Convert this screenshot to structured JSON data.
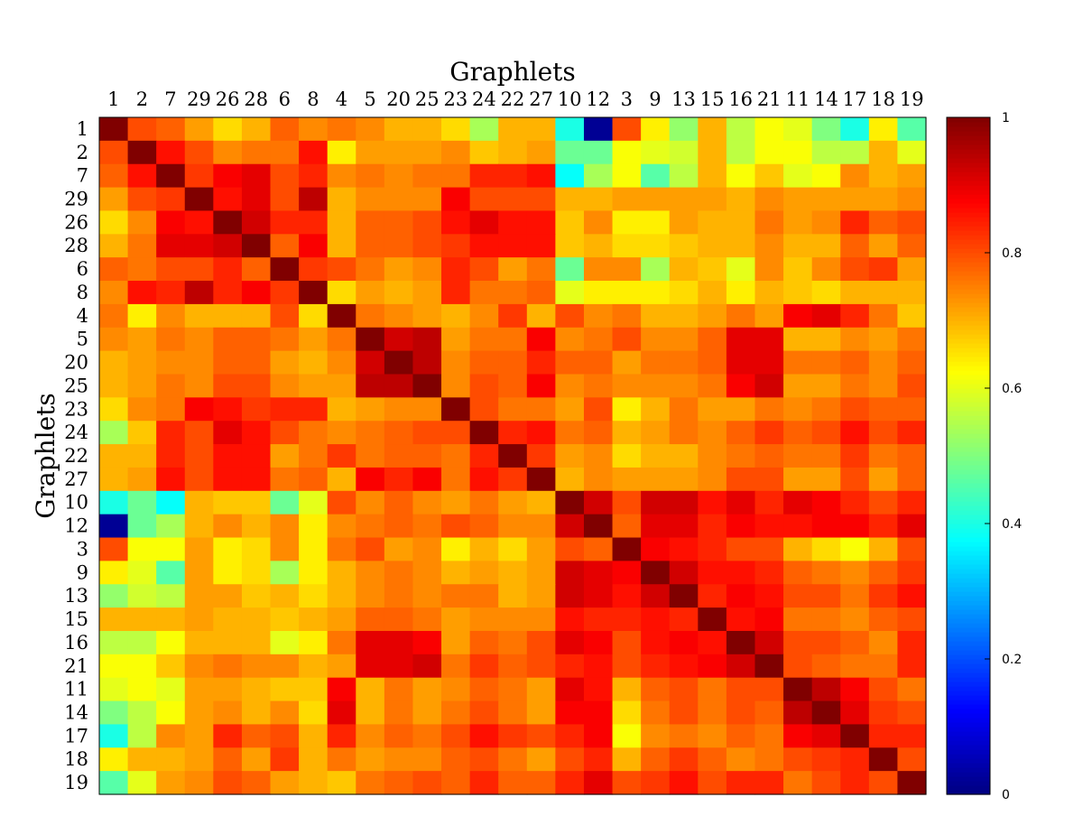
{
  "chart_data": {
    "type": "heatmap",
    "title": "",
    "xlabel": "Graphlets",
    "ylabel": "Graphlets",
    "x_axis_position": "top",
    "categories": [
      "1",
      "2",
      "7",
      "29",
      "26",
      "28",
      "6",
      "8",
      "4",
      "5",
      "20",
      "25",
      "23",
      "24",
      "22",
      "27",
      "10",
      "12",
      "3",
      "9",
      "13",
      "15",
      "16",
      "21",
      "11",
      "14",
      "17",
      "18",
      "19"
    ],
    "colormap": "jet",
    "colorbar": {
      "min": 0,
      "max": 1,
      "tick_labels": [
        "0",
        "0.2",
        "0.4",
        "0.6",
        "0.8",
        "1"
      ],
      "tick_values": [
        0,
        0.2,
        0.4,
        0.6,
        0.8,
        1
      ],
      "position": "right"
    },
    "values": [
      [
        1.0,
        0.8,
        0.78,
        0.72,
        0.66,
        0.7,
        0.78,
        0.74,
        0.76,
        0.74,
        0.7,
        0.7,
        0.66,
        0.54,
        0.7,
        0.7,
        0.4,
        0.02,
        0.8,
        0.64,
        0.52,
        0.7,
        0.56,
        0.62,
        0.6,
        0.5,
        0.4,
        0.64,
        0.46
      ],
      [
        0.8,
        1.0,
        0.86,
        0.8,
        0.74,
        0.76,
        0.76,
        0.86,
        0.64,
        0.72,
        0.72,
        0.72,
        0.74,
        0.68,
        0.7,
        0.72,
        0.48,
        0.48,
        0.62,
        0.6,
        0.58,
        0.7,
        0.56,
        0.62,
        0.62,
        0.56,
        0.56,
        0.7,
        0.6
      ],
      [
        0.78,
        0.86,
        1.0,
        0.82,
        0.88,
        0.9,
        0.8,
        0.84,
        0.74,
        0.76,
        0.74,
        0.76,
        0.76,
        0.84,
        0.84,
        0.86,
        0.38,
        0.54,
        0.62,
        0.46,
        0.56,
        0.7,
        0.62,
        0.68,
        0.6,
        0.62,
        0.74,
        0.7,
        0.72
      ],
      [
        0.72,
        0.8,
        0.82,
        1.0,
        0.86,
        0.9,
        0.8,
        0.94,
        0.7,
        0.74,
        0.74,
        0.74,
        0.88,
        0.8,
        0.8,
        0.8,
        0.7,
        0.7,
        0.72,
        0.72,
        0.72,
        0.72,
        0.7,
        0.74,
        0.72,
        0.72,
        0.72,
        0.72,
        0.74
      ],
      [
        0.66,
        0.74,
        0.88,
        0.86,
        1.0,
        0.92,
        0.84,
        0.84,
        0.7,
        0.78,
        0.78,
        0.8,
        0.86,
        0.9,
        0.86,
        0.86,
        0.68,
        0.74,
        0.64,
        0.64,
        0.72,
        0.7,
        0.7,
        0.76,
        0.72,
        0.74,
        0.84,
        0.78,
        0.8
      ],
      [
        0.7,
        0.76,
        0.9,
        0.9,
        0.92,
        1.0,
        0.78,
        0.88,
        0.7,
        0.78,
        0.78,
        0.8,
        0.82,
        0.86,
        0.86,
        0.86,
        0.68,
        0.7,
        0.66,
        0.66,
        0.68,
        0.7,
        0.7,
        0.74,
        0.7,
        0.7,
        0.78,
        0.72,
        0.78
      ],
      [
        0.78,
        0.76,
        0.8,
        0.8,
        0.84,
        0.78,
        1.0,
        0.82,
        0.8,
        0.76,
        0.72,
        0.74,
        0.84,
        0.8,
        0.72,
        0.76,
        0.48,
        0.74,
        0.74,
        0.54,
        0.7,
        0.68,
        0.6,
        0.74,
        0.68,
        0.74,
        0.8,
        0.82,
        0.72
      ],
      [
        0.74,
        0.86,
        0.84,
        0.94,
        0.84,
        0.88,
        0.82,
        1.0,
        0.66,
        0.72,
        0.7,
        0.72,
        0.84,
        0.76,
        0.76,
        0.78,
        0.6,
        0.64,
        0.64,
        0.64,
        0.66,
        0.7,
        0.64,
        0.7,
        0.68,
        0.66,
        0.7,
        0.7,
        0.7
      ],
      [
        0.76,
        0.64,
        0.74,
        0.7,
        0.7,
        0.7,
        0.8,
        0.66,
        1.0,
        0.76,
        0.74,
        0.72,
        0.7,
        0.74,
        0.82,
        0.7,
        0.8,
        0.74,
        0.76,
        0.7,
        0.7,
        0.72,
        0.76,
        0.72,
        0.88,
        0.9,
        0.84,
        0.76,
        0.68
      ],
      [
        0.74,
        0.72,
        0.76,
        0.74,
        0.78,
        0.78,
        0.76,
        0.72,
        0.76,
        1.0,
        0.92,
        0.94,
        0.72,
        0.76,
        0.76,
        0.88,
        0.74,
        0.76,
        0.8,
        0.74,
        0.74,
        0.78,
        0.9,
        0.9,
        0.7,
        0.7,
        0.74,
        0.72,
        0.76
      ],
      [
        0.7,
        0.72,
        0.74,
        0.74,
        0.78,
        0.78,
        0.72,
        0.7,
        0.74,
        0.92,
        1.0,
        0.94,
        0.74,
        0.78,
        0.78,
        0.84,
        0.78,
        0.78,
        0.72,
        0.76,
        0.76,
        0.78,
        0.9,
        0.9,
        0.76,
        0.76,
        0.78,
        0.74,
        0.78
      ],
      [
        0.7,
        0.72,
        0.76,
        0.74,
        0.8,
        0.8,
        0.74,
        0.72,
        0.72,
        0.94,
        0.94,
        1.0,
        0.74,
        0.8,
        0.78,
        0.88,
        0.74,
        0.76,
        0.74,
        0.74,
        0.74,
        0.76,
        0.88,
        0.92,
        0.72,
        0.72,
        0.76,
        0.74,
        0.8
      ],
      [
        0.66,
        0.74,
        0.76,
        0.88,
        0.86,
        0.82,
        0.84,
        0.84,
        0.7,
        0.72,
        0.74,
        0.74,
        1.0,
        0.8,
        0.76,
        0.76,
        0.72,
        0.8,
        0.64,
        0.7,
        0.76,
        0.72,
        0.72,
        0.76,
        0.74,
        0.76,
        0.8,
        0.78,
        0.78
      ],
      [
        0.54,
        0.68,
        0.84,
        0.8,
        0.9,
        0.86,
        0.8,
        0.76,
        0.74,
        0.76,
        0.78,
        0.8,
        0.8,
        1.0,
        0.84,
        0.86,
        0.76,
        0.78,
        0.7,
        0.72,
        0.76,
        0.74,
        0.78,
        0.82,
        0.78,
        0.8,
        0.86,
        0.8,
        0.84
      ],
      [
        0.7,
        0.7,
        0.84,
        0.8,
        0.86,
        0.86,
        0.72,
        0.76,
        0.82,
        0.76,
        0.78,
        0.78,
        0.76,
        0.84,
        1.0,
        0.82,
        0.72,
        0.74,
        0.66,
        0.7,
        0.7,
        0.74,
        0.76,
        0.78,
        0.76,
        0.76,
        0.82,
        0.76,
        0.78
      ],
      [
        0.7,
        0.72,
        0.86,
        0.8,
        0.86,
        0.86,
        0.76,
        0.78,
        0.7,
        0.88,
        0.84,
        0.88,
        0.76,
        0.86,
        0.82,
        1.0,
        0.7,
        0.74,
        0.72,
        0.72,
        0.72,
        0.74,
        0.8,
        0.8,
        0.72,
        0.72,
        0.8,
        0.72,
        0.78
      ],
      [
        0.4,
        0.48,
        0.38,
        0.7,
        0.68,
        0.68,
        0.48,
        0.6,
        0.8,
        0.74,
        0.78,
        0.74,
        0.72,
        0.76,
        0.72,
        0.7,
        1.0,
        0.92,
        0.8,
        0.92,
        0.92,
        0.86,
        0.9,
        0.84,
        0.9,
        0.88,
        0.84,
        0.8,
        0.84
      ],
      [
        0.02,
        0.48,
        0.54,
        0.7,
        0.74,
        0.7,
        0.74,
        0.64,
        0.74,
        0.76,
        0.78,
        0.76,
        0.8,
        0.78,
        0.74,
        0.74,
        0.92,
        1.0,
        0.78,
        0.9,
        0.9,
        0.84,
        0.88,
        0.86,
        0.86,
        0.88,
        0.88,
        0.84,
        0.9
      ],
      [
        0.8,
        0.62,
        0.62,
        0.72,
        0.64,
        0.66,
        0.74,
        0.64,
        0.76,
        0.8,
        0.72,
        0.74,
        0.64,
        0.7,
        0.66,
        0.72,
        0.8,
        0.78,
        1.0,
        0.88,
        0.86,
        0.84,
        0.8,
        0.8,
        0.7,
        0.66,
        0.62,
        0.7,
        0.8
      ],
      [
        0.64,
        0.6,
        0.46,
        0.72,
        0.64,
        0.66,
        0.54,
        0.64,
        0.7,
        0.74,
        0.76,
        0.74,
        0.7,
        0.72,
        0.7,
        0.72,
        0.92,
        0.9,
        0.88,
        1.0,
        0.92,
        0.86,
        0.86,
        0.84,
        0.78,
        0.76,
        0.74,
        0.78,
        0.82
      ],
      [
        0.52,
        0.58,
        0.56,
        0.72,
        0.72,
        0.68,
        0.7,
        0.66,
        0.7,
        0.74,
        0.76,
        0.74,
        0.76,
        0.76,
        0.7,
        0.72,
        0.92,
        0.9,
        0.86,
        0.92,
        1.0,
        0.84,
        0.88,
        0.86,
        0.8,
        0.8,
        0.76,
        0.82,
        0.86
      ],
      [
        0.7,
        0.7,
        0.7,
        0.72,
        0.7,
        0.7,
        0.68,
        0.7,
        0.72,
        0.78,
        0.78,
        0.76,
        0.72,
        0.74,
        0.74,
        0.74,
        0.86,
        0.84,
        0.84,
        0.86,
        0.84,
        1.0,
        0.86,
        0.88,
        0.76,
        0.76,
        0.74,
        0.78,
        0.8
      ],
      [
        0.56,
        0.56,
        0.62,
        0.7,
        0.7,
        0.7,
        0.6,
        0.64,
        0.76,
        0.9,
        0.9,
        0.88,
        0.72,
        0.78,
        0.76,
        0.8,
        0.9,
        0.88,
        0.8,
        0.86,
        0.88,
        0.86,
        1.0,
        0.92,
        0.8,
        0.8,
        0.78,
        0.74,
        0.84
      ],
      [
        0.62,
        0.62,
        0.68,
        0.74,
        0.76,
        0.74,
        0.74,
        0.7,
        0.72,
        0.9,
        0.9,
        0.92,
        0.76,
        0.82,
        0.78,
        0.8,
        0.84,
        0.86,
        0.8,
        0.84,
        0.86,
        0.88,
        0.92,
        1.0,
        0.8,
        0.78,
        0.76,
        0.76,
        0.84
      ],
      [
        0.6,
        0.62,
        0.6,
        0.72,
        0.72,
        0.7,
        0.68,
        0.68,
        0.88,
        0.7,
        0.76,
        0.72,
        0.74,
        0.78,
        0.76,
        0.72,
        0.9,
        0.86,
        0.7,
        0.78,
        0.8,
        0.76,
        0.8,
        0.8,
        1.0,
        0.94,
        0.88,
        0.8,
        0.76
      ],
      [
        0.5,
        0.56,
        0.62,
        0.72,
        0.74,
        0.7,
        0.74,
        0.66,
        0.9,
        0.7,
        0.76,
        0.72,
        0.76,
        0.8,
        0.76,
        0.72,
        0.88,
        0.88,
        0.66,
        0.76,
        0.8,
        0.76,
        0.8,
        0.78,
        0.94,
        1.0,
        0.9,
        0.82,
        0.8
      ],
      [
        0.4,
        0.56,
        0.74,
        0.72,
        0.84,
        0.78,
        0.8,
        0.7,
        0.84,
        0.74,
        0.78,
        0.76,
        0.8,
        0.86,
        0.82,
        0.8,
        0.84,
        0.88,
        0.62,
        0.74,
        0.76,
        0.74,
        0.78,
        0.76,
        0.88,
        0.9,
        1.0,
        0.84,
        0.84
      ],
      [
        0.64,
        0.7,
        0.7,
        0.72,
        0.78,
        0.72,
        0.82,
        0.7,
        0.76,
        0.72,
        0.74,
        0.74,
        0.78,
        0.8,
        0.76,
        0.72,
        0.8,
        0.84,
        0.7,
        0.78,
        0.82,
        0.78,
        0.74,
        0.76,
        0.8,
        0.82,
        0.84,
        1.0,
        0.8
      ],
      [
        0.46,
        0.6,
        0.72,
        0.74,
        0.8,
        0.78,
        0.72,
        0.7,
        0.68,
        0.76,
        0.78,
        0.8,
        0.78,
        0.84,
        0.78,
        0.78,
        0.84,
        0.9,
        0.8,
        0.82,
        0.86,
        0.8,
        0.84,
        0.84,
        0.76,
        0.8,
        0.84,
        0.8,
        1.0
      ]
    ]
  }
}
